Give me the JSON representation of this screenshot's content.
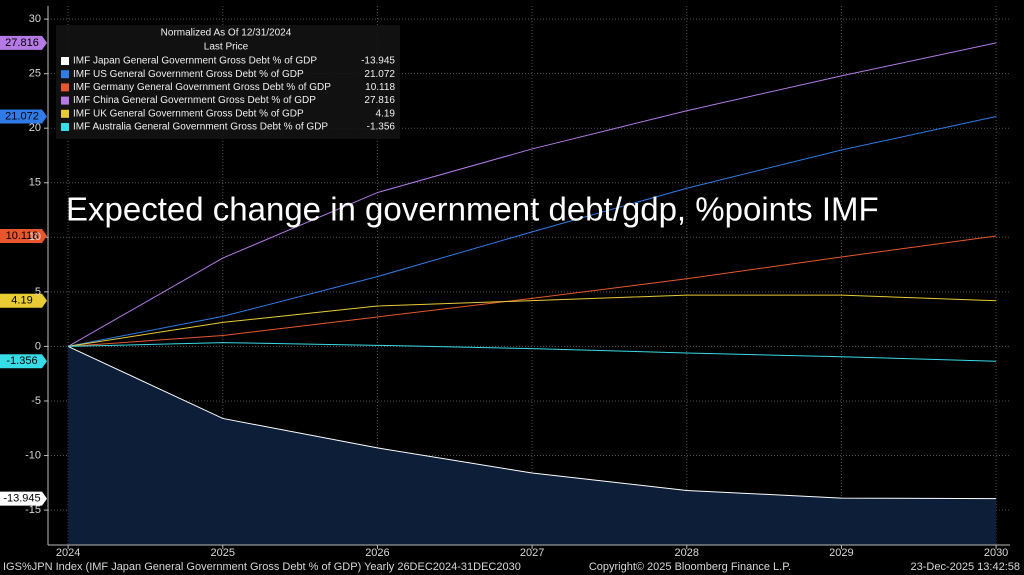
{
  "chart_data": {
    "type": "line",
    "annotation": "Expected change in government debt/gdp, %points IMF",
    "legend_title": "Normalized As Of 12/31/2024",
    "legend_subtitle": "Last Price",
    "x": [
      2024,
      2025,
      2026,
      2027,
      2028,
      2029,
      2030
    ],
    "xlim": [
      2023.87,
      2030.09
    ],
    "xticks": [
      2024,
      2025,
      2026,
      2027,
      2028,
      2029,
      2030
    ],
    "ylim": [
      -18.2,
      31.2
    ],
    "yticks": [
      30,
      25,
      20,
      15,
      10,
      5,
      0,
      -5,
      -10,
      -15
    ],
    "grid": true,
    "series": [
      {
        "name": "IMF Japan General Government Gross Debt % of GDP",
        "color": "#ffffff",
        "area": true,
        "area_color": "#0c1e38",
        "values": [
          0,
          -6.6,
          -9.3,
          -11.6,
          -13.2,
          -13.9,
          -13.945
        ]
      },
      {
        "name": "IMF US General Government Gross Debt % of GDP",
        "color": "#2f7be8",
        "values": [
          0,
          2.75,
          6.4,
          10.5,
          14.5,
          18.0,
          21.072
        ]
      },
      {
        "name": "IMF Germany General Government Gross Debt % of GDP",
        "color": "#e8572c",
        "values": [
          0,
          1.0,
          2.7,
          4.4,
          6.2,
          8.2,
          10.118
        ]
      },
      {
        "name": "IMF China General Government Gross Debt % of GDP",
        "color": "#b57ae6",
        "values": [
          0,
          8.1,
          14.1,
          18.1,
          21.6,
          24.8,
          27.816
        ]
      },
      {
        "name": "IMF UK General Government Gross Debt % of GDP",
        "color": "#e9cc34",
        "values": [
          0,
          2.2,
          3.7,
          4.2,
          4.7,
          4.7,
          4.19
        ]
      },
      {
        "name": "IMF Australia General Government Gross Debt % of GDP",
        "color": "#36dce6",
        "values": [
          0,
          0.35,
          0.1,
          -0.2,
          -0.6,
          -0.95,
          -1.356
        ]
      }
    ],
    "footer": {
      "left": "IGS%JPN Index (IMF Japan General Government Gross Debt % of GDP) Yearly 26DEC2024-31DEC2030",
      "center": "Copyright© 2025 Bloomberg Finance L.P.",
      "right": "23-Dec-2025 13:42:58"
    }
  }
}
